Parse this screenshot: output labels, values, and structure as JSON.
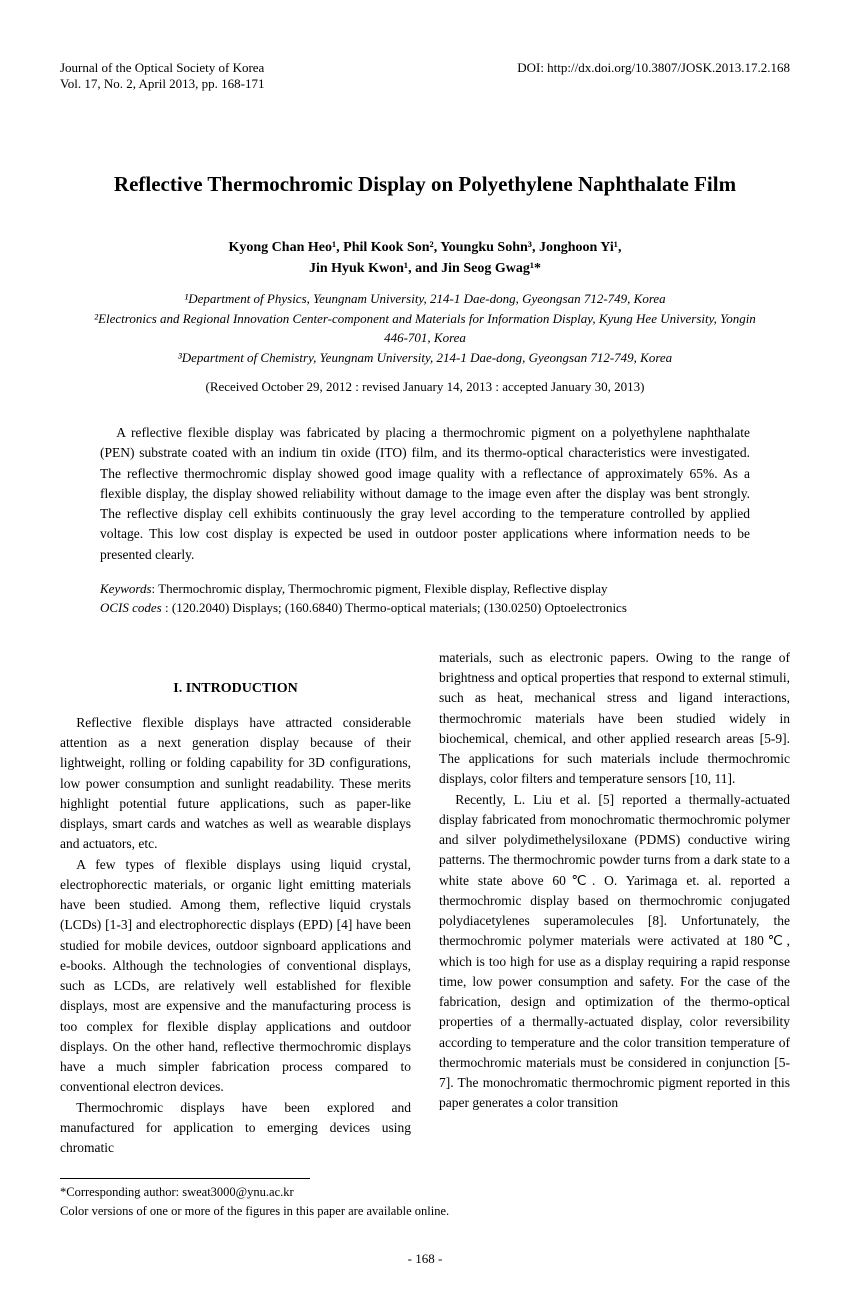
{
  "header": {
    "journal": "Journal of the Optical Society of Korea",
    "issue": "Vol. 17, No. 2, April 2013, pp. 168-171",
    "doi": "DOI: http://dx.doi.org/10.3807/JOSK.2013.17.2.168"
  },
  "title": "Reflective Thermochromic Display on Polyethylene Naphthalate Film",
  "authors_line1": "Kyong Chan Heo¹, Phil Kook Son², Youngku Sohn³, Jonghoon Yi¹,",
  "authors_line2": "Jin Hyuk Kwon¹, and Jin Seog Gwag¹*",
  "affiliations": {
    "a1": "¹Department of Physics, Yeungnam University, 214-1 Dae-dong, Gyeongsan 712-749, Korea",
    "a2": "²Electronics and Regional Innovation Center-component and Materials for Information Display, Kyung Hee University, Yongin 446-701, Korea",
    "a3": "³Department of Chemistry, Yeungnam University, 214-1 Dae-dong, Gyeongsan 712-749, Korea"
  },
  "dates": "(Received October 29, 2012 : revised January 14, 2013 : accepted January 30, 2013)",
  "abstract": "A reflective flexible display was fabricated by placing a thermochromic pigment on a polyethylene naphthalate (PEN) substrate coated with an indium tin oxide (ITO) film, and its thermo-optical characteristics were investigated. The reflective thermochromic display showed good image quality with a reflectance of approximately 65%. As a flexible display, the display showed reliability without damage to the image even after the display was bent strongly. The reflective display cell exhibits continuously the gray level according to the temperature controlled by applied voltage. This low cost display is expected be used in outdoor poster applications where information needs to be presented clearly.",
  "keywords_label": "Keywords",
  "keywords_text": ": Thermochromic display, Thermochromic pigment, Flexible display, Reflective display",
  "ocis_label": "OCIS codes",
  "ocis_text": " : (120.2040) Displays; (160.6840) Thermo-optical materials; (130.0250) Optoelectronics",
  "section_title": "I. INTRODUCTION",
  "body": {
    "left_p1": "Reflective flexible displays have attracted considerable attention as a next generation display because of their lightweight, rolling or folding capability for 3D configurations, low power consumption and sunlight readability. These merits highlight potential future applications, such as paper-like displays, smart cards and watches as well as wearable displays and actuators, etc.",
    "left_p2": "A few types of flexible displays using liquid crystal, electrophorectic materials, or organic light emitting materials have been studied. Among them, reflective liquid crystals (LCDs) [1-3] and electrophorectic displays (EPD) [4] have been studied for mobile devices, outdoor signboard applications and e-books. Although the technologies of conventional displays, such as LCDs, are relatively well established for flexible displays, most are expensive and the manufacturing process is too complex for flexible display applications and outdoor displays. On the other hand, reflective thermochromic displays have a much simpler fabrication process compared to conventional electron devices.",
    "left_p3": "Thermochromic displays have been explored and manufactured for application to emerging devices using chromatic",
    "right_p1": "materials, such as electronic papers. Owing to the range of brightness and optical properties that respond to external stimuli, such as heat, mechanical stress and ligand interactions, thermochromic materials have been studied widely in biochemical, chemical, and other applied research areas [5-9]. The applications for such materials include thermochromic displays, color filters and temperature sensors [10, 11].",
    "right_p2": "Recently, L. Liu et al. [5] reported a thermally-actuated display fabricated from monochromatic thermochromic polymer and silver polydimethelysiloxane (PDMS) conductive wiring patterns. The thermochromic powder turns from a dark state to a white state above 60℃. O. Yarimaga et. al. reported a thermochromic display based on thermochromic conjugated polydiacetylenes superamolecules [8]. Unfortunately, the thermochromic polymer materials were activated at 180℃, which is too high for use as a display requiring a rapid response time, low power consumption and safety. For the case of the fabrication, design and optimization of the thermo-optical properties of a thermally-actuated display, color reversibility according to temperature and the color transition temperature of thermochromic materials must be considered in conjunction [5-7]. The monochromatic thermochromic pigment reported in this paper generates a color transition"
  },
  "footnote": {
    "corresponding": "*Corresponding author: sweat3000@ynu.ac.kr",
    "color_versions": "Color versions of one or more of the figures in this paper are available online."
  },
  "page_number": "- 168 -"
}
